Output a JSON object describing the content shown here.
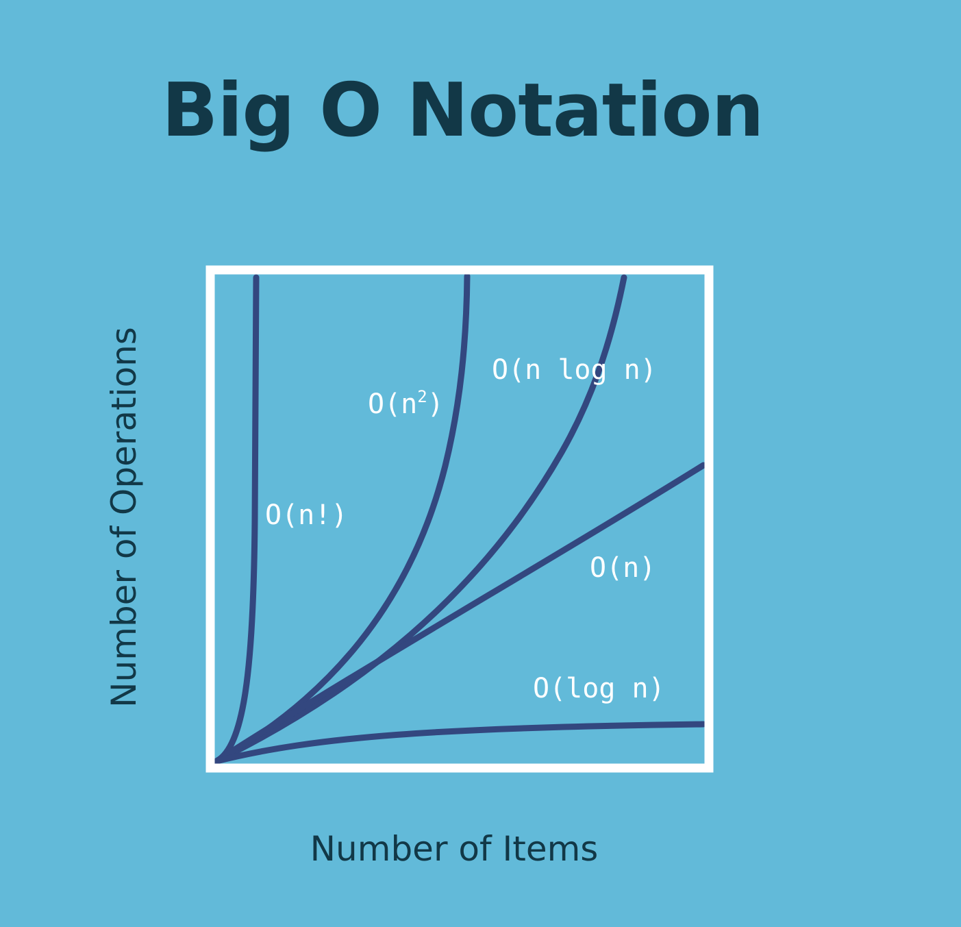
{
  "title": "Big O Notation",
  "colors": {
    "background": "#62bad9",
    "title": "#123847",
    "frame": "#ffffff",
    "curve": "#33477f",
    "label": "#ffffff"
  },
  "chart_data": {
    "type": "line",
    "title": "Big O Notation",
    "xlabel": "Number of Items",
    "ylabel": "Number of Operations",
    "ticks": false,
    "grid": false,
    "legend": "none",
    "curves": [
      {
        "id": "factorial",
        "label": "O(n!)",
        "label_base": "O(n!)",
        "label_sup": ""
      },
      {
        "id": "quadratic",
        "label": "O(n²)",
        "label_base": "O(n",
        "label_sup": "2",
        "label_close": ")"
      },
      {
        "id": "nlogn",
        "label": "O(n log n)",
        "label_base": "O(n log n)",
        "label_sup": ""
      },
      {
        "id": "linear",
        "label": "O(n)",
        "label_base": "O(n)",
        "label_sup": ""
      },
      {
        "id": "log",
        "label": "O(log n)",
        "label_base": "O(log n)",
        "label_sup": ""
      }
    ]
  }
}
